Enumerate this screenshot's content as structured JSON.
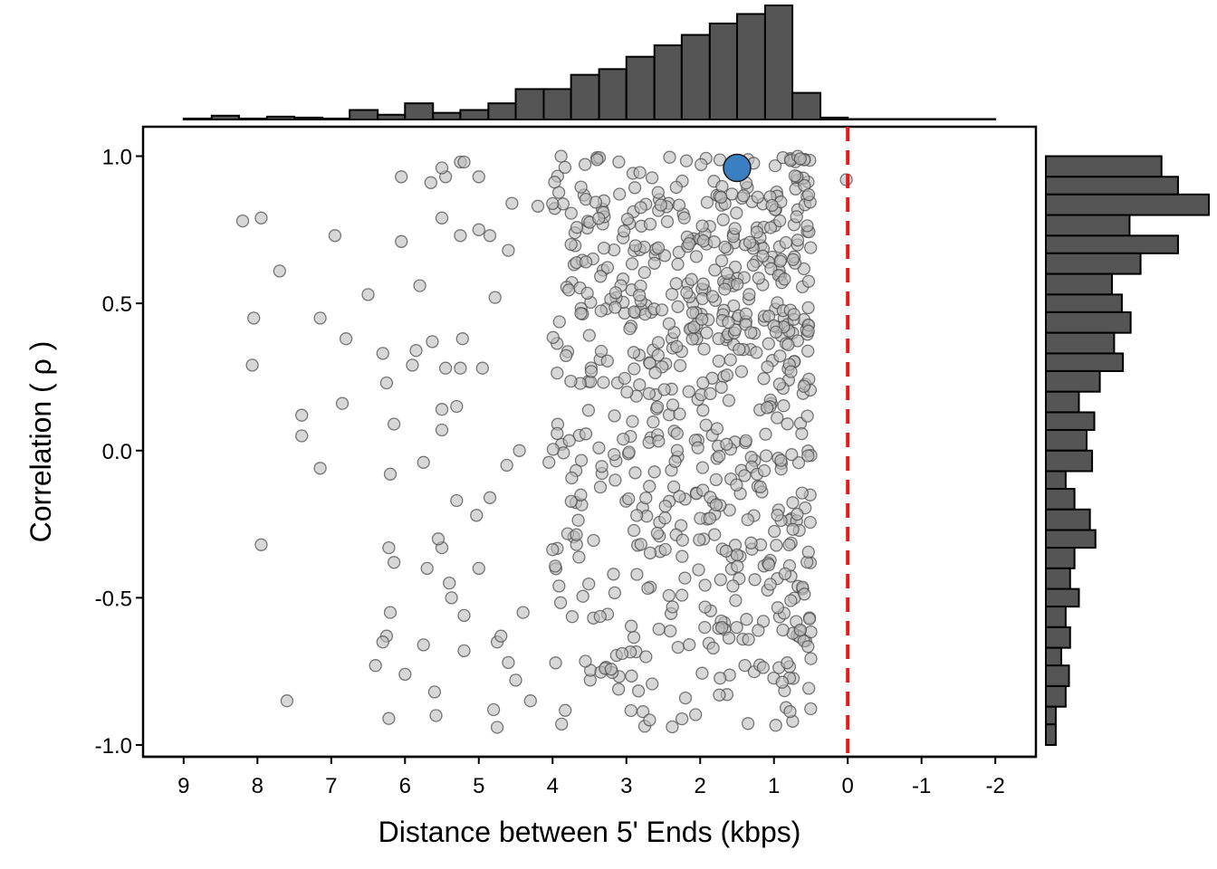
{
  "chart_data": {
    "type": "scatter",
    "xlabel": "Distance between 5' Ends (kbps)",
    "ylabel": "Correlation ( ρ )",
    "x_axis_reversed": true,
    "xlim": [
      9.55,
      -2.55
    ],
    "ylim": [
      -1.04,
      1.1
    ],
    "x_ticks": [
      9,
      8,
      7,
      6,
      5,
      4,
      3,
      2,
      1,
      0,
      -1,
      -2
    ],
    "x_tick_labels": [
      "9",
      "8",
      "7",
      "6",
      "5",
      "4",
      "3",
      "2",
      "1",
      "0",
      "-1",
      "-2"
    ],
    "y_ticks": [
      1.0,
      0.5,
      0.0,
      -0.5,
      -1.0
    ],
    "y_tick_labels": [
      "1.0",
      "0.5",
      "0.0",
      "-0.5",
      "-1.0"
    ],
    "reference_line": {
      "x": 0,
      "color": "#e31a1c",
      "style": "dashed"
    },
    "colors": {
      "points_fill": "#bdbdbd",
      "points_stroke": "#444444",
      "highlight_fill": "#3a7fc1",
      "histogram_fill": "#555555",
      "frame": "#000000"
    },
    "highlight_point": {
      "x": 1.5,
      "y": 0.96
    },
    "points_sparse": [
      [
        8.2,
        0.78
      ],
      [
        7.95,
        0.79
      ],
      [
        6.95,
        0.73
      ],
      [
        7.7,
        0.61
      ],
      [
        6.5,
        0.53
      ],
      [
        8.05,
        0.45
      ],
      [
        7.15,
        0.45
      ],
      [
        6.8,
        0.38
      ],
      [
        8.07,
        0.29
      ],
      [
        6.3,
        0.33
      ],
      [
        6.25,
        0.23
      ],
      [
        6.85,
        0.16
      ],
      [
        7.4,
        0.12
      ],
      [
        7.4,
        0.05
      ],
      [
        6.15,
        0.09
      ],
      [
        7.15,
        -0.06
      ],
      [
        6.2,
        -0.08
      ],
      [
        5.75,
        -0.04
      ],
      [
        5.5,
        0.07
      ],
      [
        7.95,
        -0.32
      ],
      [
        6.22,
        -0.33
      ],
      [
        6.15,
        -0.38
      ],
      [
        6.2,
        -0.55
      ],
      [
        6.25,
        -0.63
      ],
      [
        6.3,
        -0.65
      ],
      [
        6.4,
        -0.73
      ],
      [
        6.0,
        -0.76
      ],
      [
        7.6,
        -0.85
      ],
      [
        6.22,
        -0.91
      ],
      [
        5.6,
        -0.82
      ],
      [
        5.58,
        -0.9
      ],
      [
        5.2,
        -0.68
      ],
      [
        5.75,
        -0.66
      ],
      [
        5.2,
        -0.56
      ],
      [
        5.37,
        -0.5
      ],
      [
        5.4,
        -0.45
      ],
      [
        5.5,
        -0.33
      ],
      [
        5.55,
        -0.3
      ],
      [
        5.7,
        -0.4
      ],
      [
        5.0,
        -0.4
      ],
      [
        5.3,
        -0.17
      ],
      [
        5.03,
        -0.22
      ],
      [
        4.85,
        -0.16
      ],
      [
        4.95,
        0.28
      ],
      [
        5.22,
        0.38
      ],
      [
        5.63,
        0.37
      ],
      [
        5.45,
        0.28
      ],
      [
        5.25,
        0.28
      ],
      [
        5.5,
        0.14
      ],
      [
        5.3,
        0.15
      ],
      [
        5.85,
        0.34
      ],
      [
        5.9,
        0.29
      ],
      [
        6.05,
        0.93
      ],
      [
        5.65,
        0.91
      ],
      [
        5.45,
        0.93
      ],
      [
        5.5,
        0.96
      ],
      [
        5.25,
        0.98
      ],
      [
        5.2,
        0.98
      ],
      [
        5.0,
        0.93
      ],
      [
        5.5,
        0.79
      ],
      [
        5.25,
        0.73
      ],
      [
        5.0,
        0.75
      ],
      [
        4.85,
        0.73
      ],
      [
        6.05,
        0.71
      ],
      [
        5.8,
        0.56
      ],
      [
        4.78,
        0.52
      ],
      [
        4.6,
        0.68
      ],
      [
        4.55,
        0.84
      ],
      [
        4.2,
        0.83
      ],
      [
        4.62,
        -0.05
      ],
      [
        4.45,
        0.0
      ],
      [
        4.05,
        -0.04
      ],
      [
        4.75,
        -0.65
      ],
      [
        4.5,
        -0.78
      ],
      [
        4.3,
        -0.85
      ],
      [
        4.4,
        -0.55
      ],
      [
        4.7,
        -0.63
      ],
      [
        4.6,
        -0.72
      ],
      [
        4.8,
        -0.88
      ],
      [
        4.75,
        -0.94
      ]
    ],
    "dense_region": {
      "x_range": [
        0.5,
        4.0
      ],
      "y_range": [
        -0.94,
        1.0
      ],
      "count": 720,
      "seed": 7
    },
    "edge_point": [
      0.02,
      0.92
    ],
    "top_histogram": {
      "bin_edges": [
        9.0,
        8.62,
        8.25,
        7.87,
        7.5,
        7.12,
        6.75,
        6.37,
        6.0,
        5.62,
        5.25,
        4.87,
        4.5,
        4.12,
        3.75,
        3.37,
        3.0,
        2.62,
        2.25,
        1.87,
        1.5,
        1.12,
        0.75,
        0.37,
        0.0,
        -0.37,
        -0.75,
        -1.12,
        -1.5,
        -1.87,
        -2.0
      ],
      "counts": [
        0.1,
        0.4,
        0.1,
        0.3,
        0.2,
        0.1,
        1.0,
        0.5,
        1.7,
        0.7,
        1.0,
        1.7,
        3.2,
        3.2,
        4.7,
        5.3,
        6.6,
        7.8,
        8.9,
        10.1,
        11.1,
        12.0,
        2.8,
        0.2,
        0.05,
        0.05,
        0.05,
        0.05,
        0.05,
        0.05
      ]
    },
    "right_histogram": {
      "bin_edges": [
        1.0,
        0.93,
        0.87,
        0.8,
        0.73,
        0.67,
        0.6,
        0.53,
        0.47,
        0.4,
        0.33,
        0.27,
        0.2,
        0.13,
        0.07,
        0.0,
        -0.07,
        -0.13,
        -0.2,
        -0.27,
        -0.33,
        -0.4,
        -0.47,
        -0.53,
        -0.6,
        -0.67,
        -0.73,
        -0.8,
        -0.87,
        -0.93,
        -1.0
      ],
      "counts": [
        10.5,
        12.0,
        14.8,
        7.6,
        12.0,
        8.6,
        6.0,
        6.9,
        7.7,
        6.2,
        7.0,
        4.9,
        3.0,
        4.4,
        3.7,
        4.2,
        1.8,
        2.6,
        4.0,
        4.5,
        2.6,
        2.2,
        3.0,
        1.8,
        2.2,
        1.4,
        2.1,
        1.8,
        0.9,
        0.9
      ]
    }
  }
}
